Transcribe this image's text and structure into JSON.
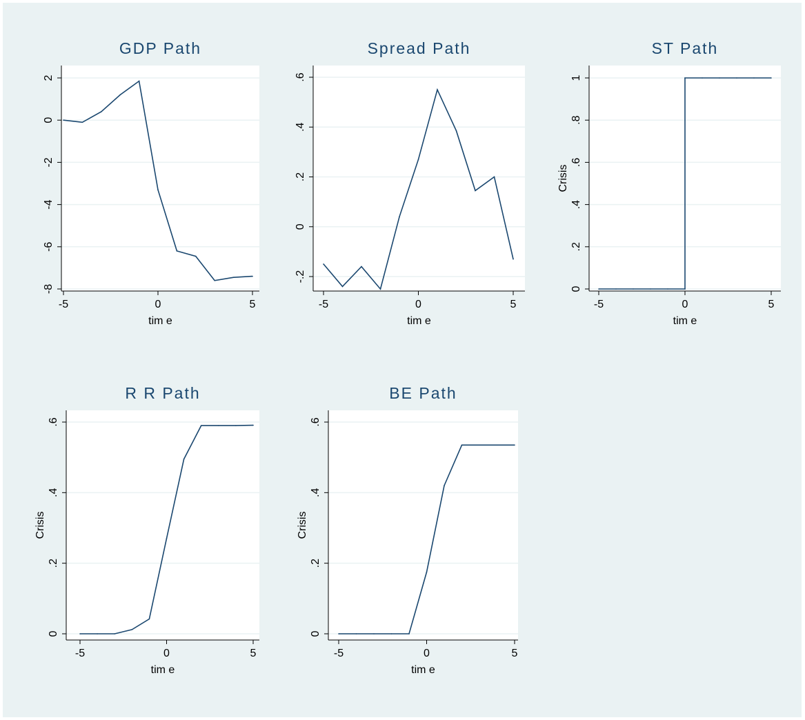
{
  "chart_data": [
    {
      "type": "line",
      "title": "GDP Path",
      "xlabel": "tim e",
      "ylabel": "",
      "xlim": [
        -5,
        5
      ],
      "ylim": [
        -8,
        2
      ],
      "xticks": [
        "-5",
        "0",
        "5"
      ],
      "yticks": [
        "-8",
        "-6",
        "-4",
        "-2",
        "0",
        "2"
      ],
      "grid": true,
      "color": "#1a476f",
      "x": [
        -5,
        -4,
        -3,
        -2,
        -1,
        0,
        1,
        2,
        3,
        4,
        5
      ],
      "y": [
        0.0,
        -0.1,
        0.4,
        1.2,
        1.85,
        -3.3,
        -6.2,
        -6.45,
        -7.6,
        -7.45,
        -7.4
      ]
    },
    {
      "type": "line",
      "title": "Spread Path",
      "xlabel": "tim e",
      "ylabel": "",
      "xlim": [
        -5,
        5
      ],
      "ylim": [
        -0.2,
        0.6
      ],
      "xticks": [
        "-5",
        "0",
        "5"
      ],
      "yticks": [
        "-.2",
        "0",
        ".2",
        ".4",
        ".6"
      ],
      "grid": true,
      "color": "#1a476f",
      "x": [
        -5,
        -4,
        -3,
        -2,
        -1,
        0,
        1,
        2,
        3,
        4,
        5
      ],
      "y": [
        -0.15,
        -0.24,
        -0.16,
        -0.25,
        0.04,
        0.27,
        0.55,
        0.385,
        0.145,
        0.2,
        -0.13
      ]
    },
    {
      "type": "line",
      "title": "ST Path",
      "xlabel": "tim e",
      "ylabel": "Crisis",
      "xlim": [
        -5,
        5
      ],
      "ylim": [
        0,
        1
      ],
      "xticks": [
        "-5",
        "0",
        "5"
      ],
      "yticks": [
        "0",
        ".2",
        ".4",
        ".6",
        ".8",
        "1"
      ],
      "grid": true,
      "color": "#1a476f",
      "x": [
        -5,
        -4,
        -3,
        -2,
        -1,
        0,
        0,
        1,
        2,
        3,
        4,
        5
      ],
      "y": [
        0,
        0,
        0,
        0,
        0,
        0,
        1,
        1,
        1,
        1,
        1,
        1
      ]
    },
    {
      "type": "line",
      "title": "R R Path",
      "xlabel": "tim e",
      "ylabel": "Crisis",
      "xlim": [
        -5,
        5
      ],
      "ylim": [
        0,
        0.6
      ],
      "xticks": [
        "-5",
        "0",
        "5"
      ],
      "yticks": [
        "0",
        ".2",
        ".4",
        ".6"
      ],
      "grid": true,
      "color": "#1a476f",
      "x": [
        -5,
        -4,
        -3,
        -2,
        -1,
        0,
        1,
        2,
        3,
        4,
        5
      ],
      "y": [
        0,
        0,
        0,
        0.012,
        0.042,
        0.27,
        0.495,
        0.59,
        0.59,
        0.59,
        0.591
      ]
    },
    {
      "type": "line",
      "title": "BE Path",
      "xlabel": "tim e",
      "ylabel": "Crisis",
      "xlim": [
        -5,
        5
      ],
      "ylim": [
        0,
        0.6
      ],
      "xticks": [
        "-5",
        "0",
        "5"
      ],
      "yticks": [
        "0",
        ".2",
        ".4",
        ".6"
      ],
      "grid": true,
      "color": "#1a476f",
      "x": [
        -5,
        -4,
        -3,
        -2,
        -1,
        0,
        1,
        2,
        3,
        4,
        5
      ],
      "y": [
        0,
        0,
        0,
        0,
        0,
        0.175,
        0.42,
        0.535,
        0.535,
        0.535,
        0.535
      ]
    }
  ]
}
